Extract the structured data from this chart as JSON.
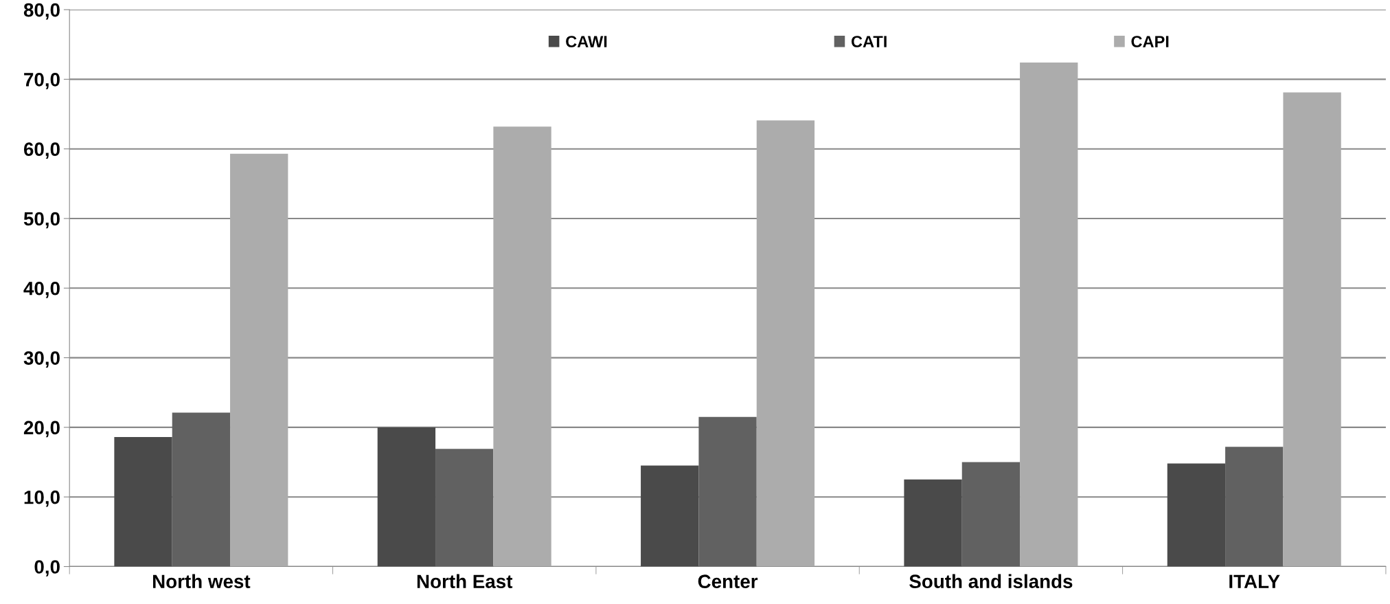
{
  "chart_data": {
    "type": "bar",
    "categories": [
      "North west",
      "North East",
      "Center",
      "South and islands",
      "ITALY"
    ],
    "series": [
      {
        "name": "CAWI",
        "color": "#4a4a4a",
        "values": [
          18.6,
          20.0,
          14.5,
          12.5,
          14.8
        ]
      },
      {
        "name": "CATI",
        "color": "#616161",
        "values": [
          22.1,
          16.9,
          21.5,
          15.0,
          17.2
        ]
      },
      {
        "name": "CAPI",
        "color": "#acacac",
        "values": [
          59.3,
          63.2,
          64.1,
          72.4,
          68.1
        ]
      }
    ],
    "ylim": [
      0,
      80
    ],
    "yticks": [
      {
        "value": 0,
        "label": "0,0"
      },
      {
        "value": 10,
        "label": "10,0"
      },
      {
        "value": 20,
        "label": "20,0"
      },
      {
        "value": 30,
        "label": "30,0"
      },
      {
        "value": 40,
        "label": "40,0"
      },
      {
        "value": 50,
        "label": "50,0"
      },
      {
        "value": 60,
        "label": "60,0"
      },
      {
        "value": 70,
        "label": "70,0"
      },
      {
        "value": 80,
        "label": "80,0"
      }
    ],
    "grid": "y",
    "legend": "top"
  }
}
